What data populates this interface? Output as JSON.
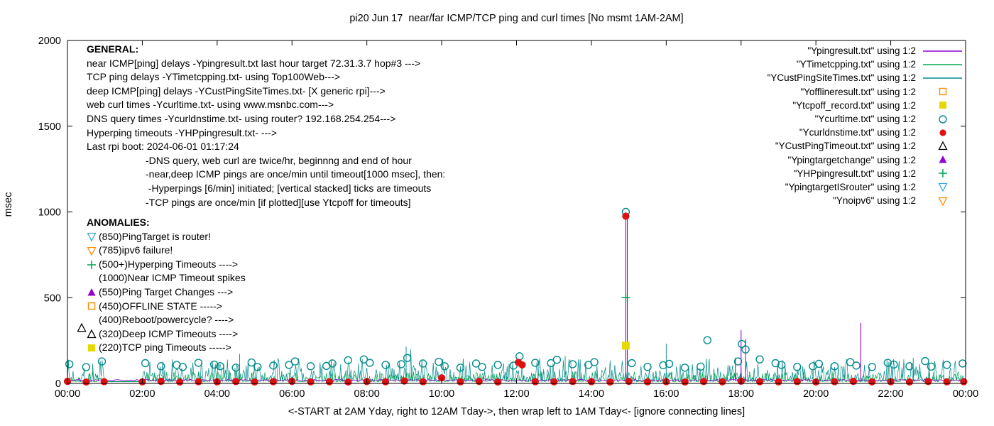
{
  "title": "pi20 Jun 17  near/far ICMP/TCP ping and curl times [No msmt 1AM-2AM]",
  "ylabel": "msec",
  "xlabel": "<-START at 2AM Yday, right to 12AM Tday->, then wrap left to 1AM Tday<- [ignore connecting lines]",
  "general": {
    "heading": "GENERAL:",
    "lines": [
      "near ICMP[ping] delays -Ypingresult.txt last hour target 72.31.3.7 hop#3 --->",
      "TCP ping delays -YTimetcpping.txt- using Top100Web--->",
      "deep ICMP[ping] delays -YCustPingSiteTimes.txt- [X generic rpi]--->",
      "web curl times -Ycurltime.txt- using www.msnbc.com--->",
      "DNS query times -Ycurldnstime.txt- using router? 192.168.254.254--->",
      "Hyperping timeouts -YHPpingresult.txt- --->",
      "Last rpi boot: 2024-06-01 01:17:24"
    ],
    "indented_lines": [
      "-DNS query, web curl are twice/hr, beginnng and end of hour",
      "-near,deep ICMP pings are once/min until timeout[1000 msec], then:",
      " -Hyperpings [6/min] initiated; [vertical stacked] ticks are timeouts",
      "-TCP pings are once/min [if plotted][use Ytcpoff for timeouts]"
    ]
  },
  "anomalies": {
    "heading": "ANOMALIES:",
    "items": [
      {
        "marker": "triangle-down-open",
        "color": "#3BA7D9",
        "text": "(850)PingTarget is router!"
      },
      {
        "marker": "triangle-down-open",
        "color": "#FF8C00",
        "text": "(785)ipv6 failure!"
      },
      {
        "marker": "plus",
        "color": "#00A550",
        "text": "(500+)Hyperping Timeouts ---->"
      },
      {
        "marker": "none",
        "color": "#000000",
        "text": "(1000)Near ICMP Timeout spikes"
      },
      {
        "marker": "triangle-up-filled",
        "color": "#9400D3",
        "text": "(550)Ping Target Changes --->"
      },
      {
        "marker": "square-open",
        "color": "#FF8C00",
        "text": "(450)OFFLINE STATE ----->"
      },
      {
        "marker": "none",
        "color": "#000000",
        "text": "(400)Reboot/powercycle? ---->"
      },
      {
        "marker": "triangle-up-open",
        "color": "#000000",
        "text": "(320)Deep ICMP Timeouts ---->"
      },
      {
        "marker": "square-filled",
        "color": "#E6D800",
        "text": "(220)TCP ping Timeouts ----->"
      }
    ]
  },
  "legend": [
    {
      "label": "\"Ypingresult.txt\" using 1:2",
      "sample": "line",
      "color": "#9400D3"
    },
    {
      "label": "\"YTimetcpping.txt\" using 1:2",
      "sample": "line",
      "color": "#00A550"
    },
    {
      "label": "\"YCustPingSiteTimes.txt\" using 1:2",
      "sample": "line",
      "color": "#008B8B"
    },
    {
      "label": "\"Yofflineresult.txt\" using 1:2",
      "sample": "square-open",
      "color": "#FF8C00"
    },
    {
      "label": "\"Ytcpoff_record.txt\" using 1:2",
      "sample": "square-filled",
      "color": "#E6D800"
    },
    {
      "label": "\"Ycurltime.txt\" using 1:2",
      "sample": "circle-open",
      "color": "#008B8B"
    },
    {
      "label": "\"Ycurldnstime.txt\" using 1:2",
      "sample": "circle-filled",
      "color": "#DD1111"
    },
    {
      "label": "\"YCustPingTimeout.txt\" using 1:2",
      "sample": "triangle-up-open",
      "color": "#000000"
    },
    {
      "label": "\"Ypingtargetchange\" using 1:2",
      "sample": "triangle-up-filled",
      "color": "#9400D3"
    },
    {
      "label": "\"YHPpingresult.txt\" using 1:2",
      "sample": "plus",
      "color": "#00A550"
    },
    {
      "label": "\"YpingtargetISrouter\" using 1:2",
      "sample": "triangle-down-open",
      "color": "#3BA7D9"
    },
    {
      "label": "\"Ynoipv6\" using 1:2",
      "sample": "triangle-down-open",
      "color": "#FF8C00"
    }
  ],
  "chart_data": {
    "type": "line",
    "x_unit": "hours_since_2AM_yday",
    "xlim": [
      0,
      24
    ],
    "ylim": [
      0,
      2000
    ],
    "yticks": [
      0,
      500,
      1000,
      1500,
      2000
    ],
    "xticks": {
      "positions": [
        0,
        2,
        4,
        6,
        8,
        10,
        12,
        14,
        16,
        18,
        20,
        22,
        24
      ],
      "labels": [
        "00:00",
        "02:00",
        "04:00",
        "06:00",
        "08:00",
        "10:00",
        "12:00",
        "14:00",
        "16:00",
        "18:00",
        "20:00",
        "22:00",
        "00:00"
      ]
    },
    "grid": false,
    "no_measurement_gap_hours": [
      1,
      2
    ],
    "noise_series": [
      {
        "name": "YCustPingSiteTimes.txt",
        "color": "#008B8B",
        "base": 12,
        "amp": 135,
        "step_min": 1.5,
        "seed": 7,
        "extra_spikes": [
          [
            4.6,
            172
          ],
          [
            9.05,
            215
          ],
          [
            13.3,
            160
          ],
          [
            16.0,
            232
          ],
          [
            22.6,
            150
          ]
        ]
      },
      {
        "name": "YTimetcpping.txt",
        "color": "#00A550",
        "base": 10,
        "amp": 60,
        "step_min": 1.5,
        "seed": 13,
        "extra_spikes": []
      }
    ],
    "line_series": [
      {
        "name": "Ypingresult.txt",
        "color": "#9400D3",
        "base": 14,
        "seed": 21,
        "spikes": [
          [
            14.92,
            1000
          ],
          [
            14.96,
            975
          ],
          [
            17.85,
            150
          ],
          [
            18.0,
            310
          ],
          [
            18.12,
            258
          ],
          [
            21.2,
            352
          ]
        ]
      }
    ],
    "scatter_series": [
      {
        "name": "Ycurltime.txt",
        "marker": "circle-open",
        "color": "#008B8B",
        "points": [
          [
            0.05,
            112
          ],
          [
            0.5,
            95
          ],
          [
            0.92,
            128
          ],
          [
            2.08,
            118
          ],
          [
            2.5,
            100
          ],
          [
            2.92,
            108
          ],
          [
            3.08,
            96
          ],
          [
            3.5,
            120
          ],
          [
            3.92,
            110
          ],
          [
            4.08,
            100
          ],
          [
            4.5,
            92
          ],
          [
            4.92,
            122
          ],
          [
            5.08,
            96
          ],
          [
            5.5,
            104
          ],
          [
            5.92,
            108
          ],
          [
            6.08,
            128
          ],
          [
            6.5,
            100
          ],
          [
            6.92,
            102
          ],
          [
            7.08,
            116
          ],
          [
            7.5,
            135
          ],
          [
            7.92,
            140
          ],
          [
            8.08,
            120
          ],
          [
            8.5,
            108
          ],
          [
            8.92,
            112
          ],
          [
            9.08,
            148
          ],
          [
            9.5,
            116
          ],
          [
            9.92,
            126
          ],
          [
            10.08,
            100
          ],
          [
            10.5,
            92
          ],
          [
            10.92,
            116
          ],
          [
            11.08,
            96
          ],
          [
            11.5,
            108
          ],
          [
            11.92,
            104
          ],
          [
            12.08,
            158
          ],
          [
            12.5,
            120
          ],
          [
            12.92,
            118
          ],
          [
            13.08,
            138
          ],
          [
            13.5,
            112
          ],
          [
            13.92,
            108
          ],
          [
            14.08,
            124
          ],
          [
            14.92,
            1000
          ],
          [
            15.08,
            118
          ],
          [
            15.5,
            96
          ],
          [
            15.92,
            106
          ],
          [
            16.08,
            114
          ],
          [
            16.5,
            92
          ],
          [
            16.92,
            98
          ],
          [
            17.1,
            252
          ],
          [
            17.92,
            128
          ],
          [
            18.02,
            230
          ],
          [
            18.12,
            198
          ],
          [
            18.5,
            140
          ],
          [
            18.92,
            118
          ],
          [
            19.08,
            108
          ],
          [
            19.5,
            96
          ],
          [
            19.92,
            100
          ],
          [
            20.08,
            114
          ],
          [
            20.5,
            100
          ],
          [
            20.92,
            124
          ],
          [
            21.08,
            104
          ],
          [
            21.5,
            96
          ],
          [
            21.92,
            120
          ],
          [
            22.08,
            110
          ],
          [
            22.5,
            100
          ],
          [
            22.92,
            130
          ],
          [
            23.08,
            98
          ],
          [
            23.5,
            108
          ],
          [
            23.92,
            116
          ]
        ]
      },
      {
        "name": "Ycurldnstime.txt",
        "marker": "circle-filled",
        "color": "#DD1111",
        "points": [
          [
            0.0,
            12
          ],
          [
            0.5,
            8
          ],
          [
            0.98,
            10
          ],
          [
            2.0,
            9
          ],
          [
            2.5,
            12
          ],
          [
            3.0,
            8
          ],
          [
            3.5,
            10
          ],
          [
            4.0,
            9
          ],
          [
            4.5,
            11
          ],
          [
            5.0,
            8
          ],
          [
            5.5,
            10
          ],
          [
            6.0,
            12
          ],
          [
            6.5,
            9
          ],
          [
            7.0,
            10
          ],
          [
            7.5,
            8
          ],
          [
            8.0,
            11
          ],
          [
            8.5,
            9
          ],
          [
            9.0,
            14
          ],
          [
            9.5,
            10
          ],
          [
            10.0,
            32
          ],
          [
            10.5,
            9
          ],
          [
            11.0,
            12
          ],
          [
            11.5,
            8
          ],
          [
            12.05,
            122
          ],
          [
            12.15,
            108
          ],
          [
            12.5,
            10
          ],
          [
            13.0,
            9
          ],
          [
            13.5,
            11
          ],
          [
            14.0,
            10
          ],
          [
            14.5,
            8
          ],
          [
            14.92,
            975
          ],
          [
            15.0,
            12
          ],
          [
            15.5,
            9
          ],
          [
            16.0,
            10
          ],
          [
            16.5,
            8
          ],
          [
            17.0,
            11
          ],
          [
            17.5,
            9
          ],
          [
            18.0,
            13
          ],
          [
            18.5,
            10
          ],
          [
            19.0,
            9
          ],
          [
            19.5,
            11
          ],
          [
            20.0,
            8
          ],
          [
            20.5,
            10
          ],
          [
            21.0,
            12
          ],
          [
            21.5,
            9
          ],
          [
            22.0,
            10
          ],
          [
            22.5,
            8
          ],
          [
            23.0,
            11
          ],
          [
            23.5,
            9
          ],
          [
            23.95,
            10
          ]
        ]
      },
      {
        "name": "YHPpingresult.txt",
        "marker": "plus",
        "color": "#00A550",
        "points": [
          [
            14.92,
            500
          ]
        ]
      },
      {
        "name": "Ytcpoff_record.txt",
        "marker": "square-filled",
        "color": "#E6D800",
        "points": [
          [
            14.92,
            220
          ]
        ]
      },
      {
        "name": "YCustPingTimeout.txt",
        "marker": "triangle-up-open",
        "color": "#000000",
        "points": [
          [
            0.38,
            322
          ]
        ]
      }
    ]
  }
}
